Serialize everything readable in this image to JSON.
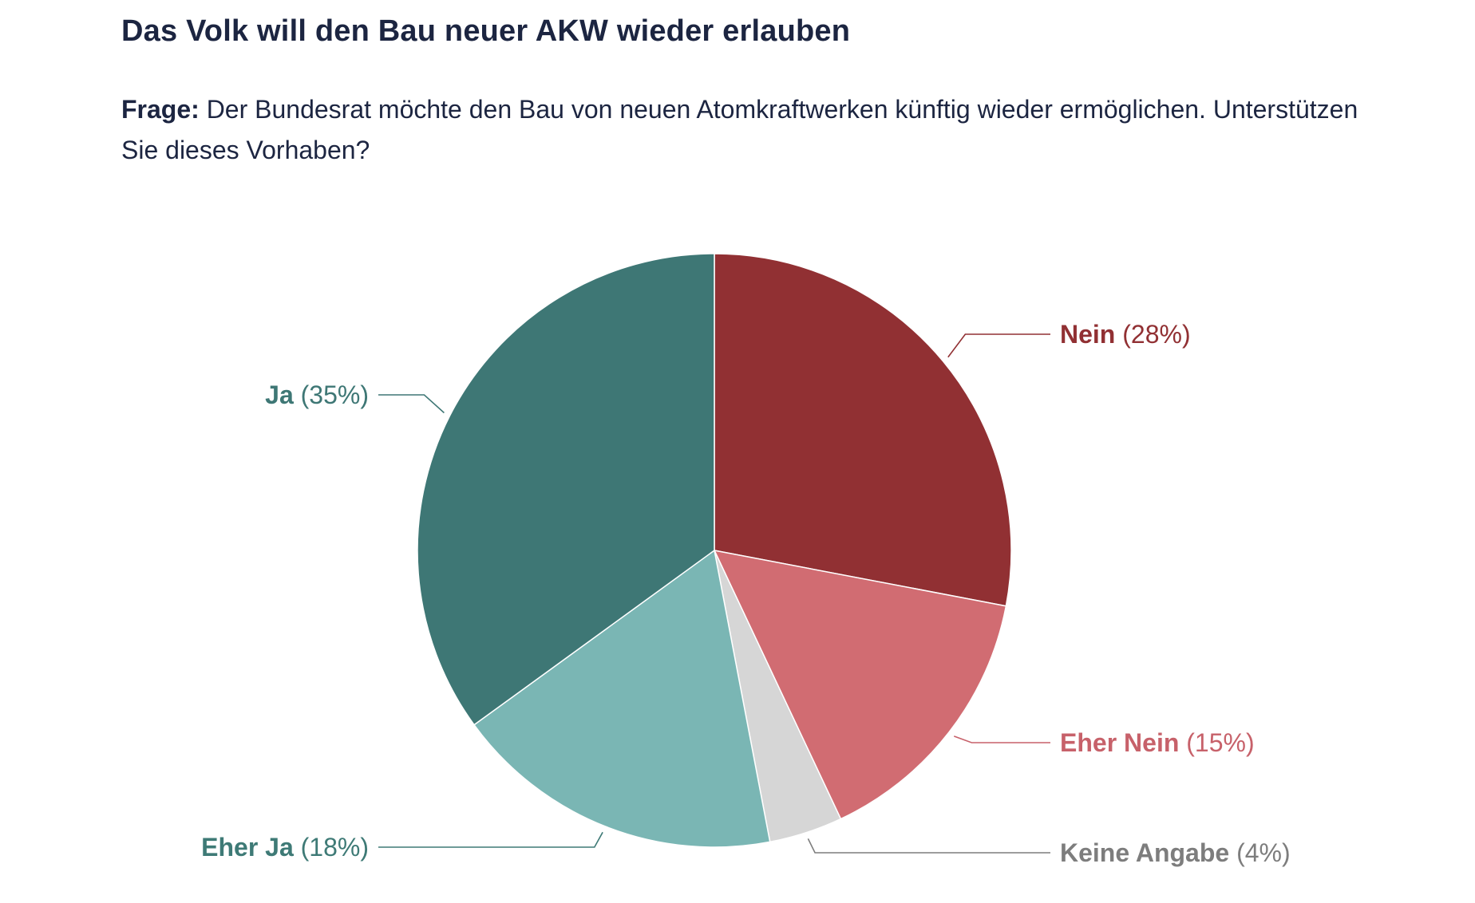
{
  "header": {
    "title": "Das Volk will den Bau neuer AKW wieder erlauben",
    "question_label": "Frage:",
    "question_text": "Der Bundesrat möchte den Bau von neuen Atomkraftwerken künftig wieder ermöglichen. Unterstützen Sie dieses Vorhaben?"
  },
  "chart_data": {
    "type": "pie",
    "slices": [
      {
        "label": "Nein",
        "value": 28,
        "value_label": "(28%)",
        "color": "#913033",
        "label_color": "#913033"
      },
      {
        "label": "Eher Nein",
        "value": 15,
        "value_label": "(15%)",
        "color": "#d16c72",
        "label_color": "#c7616a"
      },
      {
        "label": "Keine Angabe",
        "value": 4,
        "value_label": "(4%)",
        "color": "#d6d6d6",
        "label_color": "#7d7d7d"
      },
      {
        "label": "Eher Ja",
        "value": 18,
        "value_label": "(18%)",
        "color": "#7ab6b4",
        "label_color": "#3e7a76"
      },
      {
        "label": "Ja",
        "value": 35,
        "value_label": "(35%)",
        "color": "#3e7775",
        "label_color": "#3e7775"
      }
    ],
    "start": "top",
    "direction": "clockwise"
  }
}
